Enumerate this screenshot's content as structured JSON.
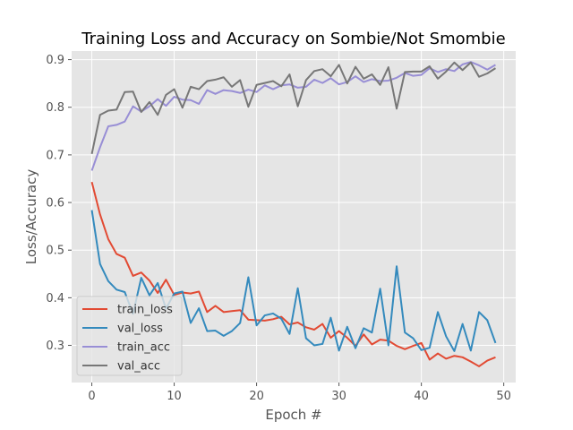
{
  "chart_data": {
    "type": "line",
    "title": "Training Loss and Accuracy on Sombie/Not Smombie",
    "xlabel": "Epoch #",
    "ylabel": "Loss/Accuracy",
    "xlim": [
      -2.45,
      51.45
    ],
    "ylim": [
      0.222,
      0.918
    ],
    "xticks": [
      0,
      10,
      20,
      30,
      40,
      50
    ],
    "yticks": [
      0.3,
      0.4,
      0.5,
      0.6,
      0.7,
      0.8,
      0.9
    ],
    "grid": true,
    "legend_position": "lower-left",
    "series": [
      {
        "name": "train_loss",
        "color": "#e24a33",
        "values": [
          0.643,
          0.575,
          0.523,
          0.492,
          0.484,
          0.446,
          0.453,
          0.436,
          0.41,
          0.438,
          0.406,
          0.411,
          0.409,
          0.413,
          0.37,
          0.383,
          0.37,
          0.372,
          0.374,
          0.354,
          0.353,
          0.352,
          0.355,
          0.36,
          0.344,
          0.348,
          0.338,
          0.333,
          0.345,
          0.316,
          0.33,
          0.316,
          0.299,
          0.323,
          0.302,
          0.312,
          0.31,
          0.299,
          0.292,
          0.299,
          0.305,
          0.27,
          0.283,
          0.272,
          0.278,
          0.275,
          0.266,
          0.256,
          0.268,
          0.275
        ]
      },
      {
        "name": "val_loss",
        "color": "#348abd",
        "values": [
          0.584,
          0.471,
          0.435,
          0.417,
          0.412,
          0.366,
          0.442,
          0.405,
          0.431,
          0.377,
          0.409,
          0.413,
          0.347,
          0.378,
          0.33,
          0.331,
          0.32,
          0.33,
          0.347,
          0.443,
          0.342,
          0.363,
          0.367,
          0.356,
          0.324,
          0.42,
          0.315,
          0.3,
          0.303,
          0.358,
          0.289,
          0.339,
          0.294,
          0.336,
          0.327,
          0.419,
          0.3,
          0.466,
          0.327,
          0.315,
          0.29,
          0.295,
          0.37,
          0.319,
          0.288,
          0.345,
          0.289,
          0.37,
          0.353,
          0.305
        ]
      },
      {
        "name": "train_acc",
        "color": "#988ed5",
        "values": [
          0.667,
          0.716,
          0.76,
          0.763,
          0.77,
          0.802,
          0.791,
          0.802,
          0.817,
          0.803,
          0.822,
          0.816,
          0.815,
          0.807,
          0.836,
          0.828,
          0.836,
          0.834,
          0.83,
          0.837,
          0.832,
          0.846,
          0.838,
          0.846,
          0.848,
          0.841,
          0.843,
          0.858,
          0.851,
          0.861,
          0.848,
          0.853,
          0.865,
          0.853,
          0.859,
          0.855,
          0.856,
          0.862,
          0.872,
          0.866,
          0.868,
          0.882,
          0.874,
          0.88,
          0.876,
          0.89,
          0.895,
          0.888,
          0.879,
          0.889
        ]
      },
      {
        "name": "val_acc",
        "color": "#777777",
        "values": [
          0.702,
          0.784,
          0.793,
          0.795,
          0.832,
          0.833,
          0.79,
          0.811,
          0.784,
          0.826,
          0.838,
          0.799,
          0.843,
          0.838,
          0.855,
          0.858,
          0.863,
          0.843,
          0.857,
          0.801,
          0.847,
          0.851,
          0.855,
          0.844,
          0.869,
          0.802,
          0.857,
          0.876,
          0.88,
          0.865,
          0.889,
          0.85,
          0.885,
          0.86,
          0.869,
          0.847,
          0.884,
          0.797,
          0.874,
          0.875,
          0.875,
          0.886,
          0.86,
          0.875,
          0.894,
          0.878,
          0.894,
          0.864,
          0.871,
          0.882
        ]
      }
    ]
  }
}
